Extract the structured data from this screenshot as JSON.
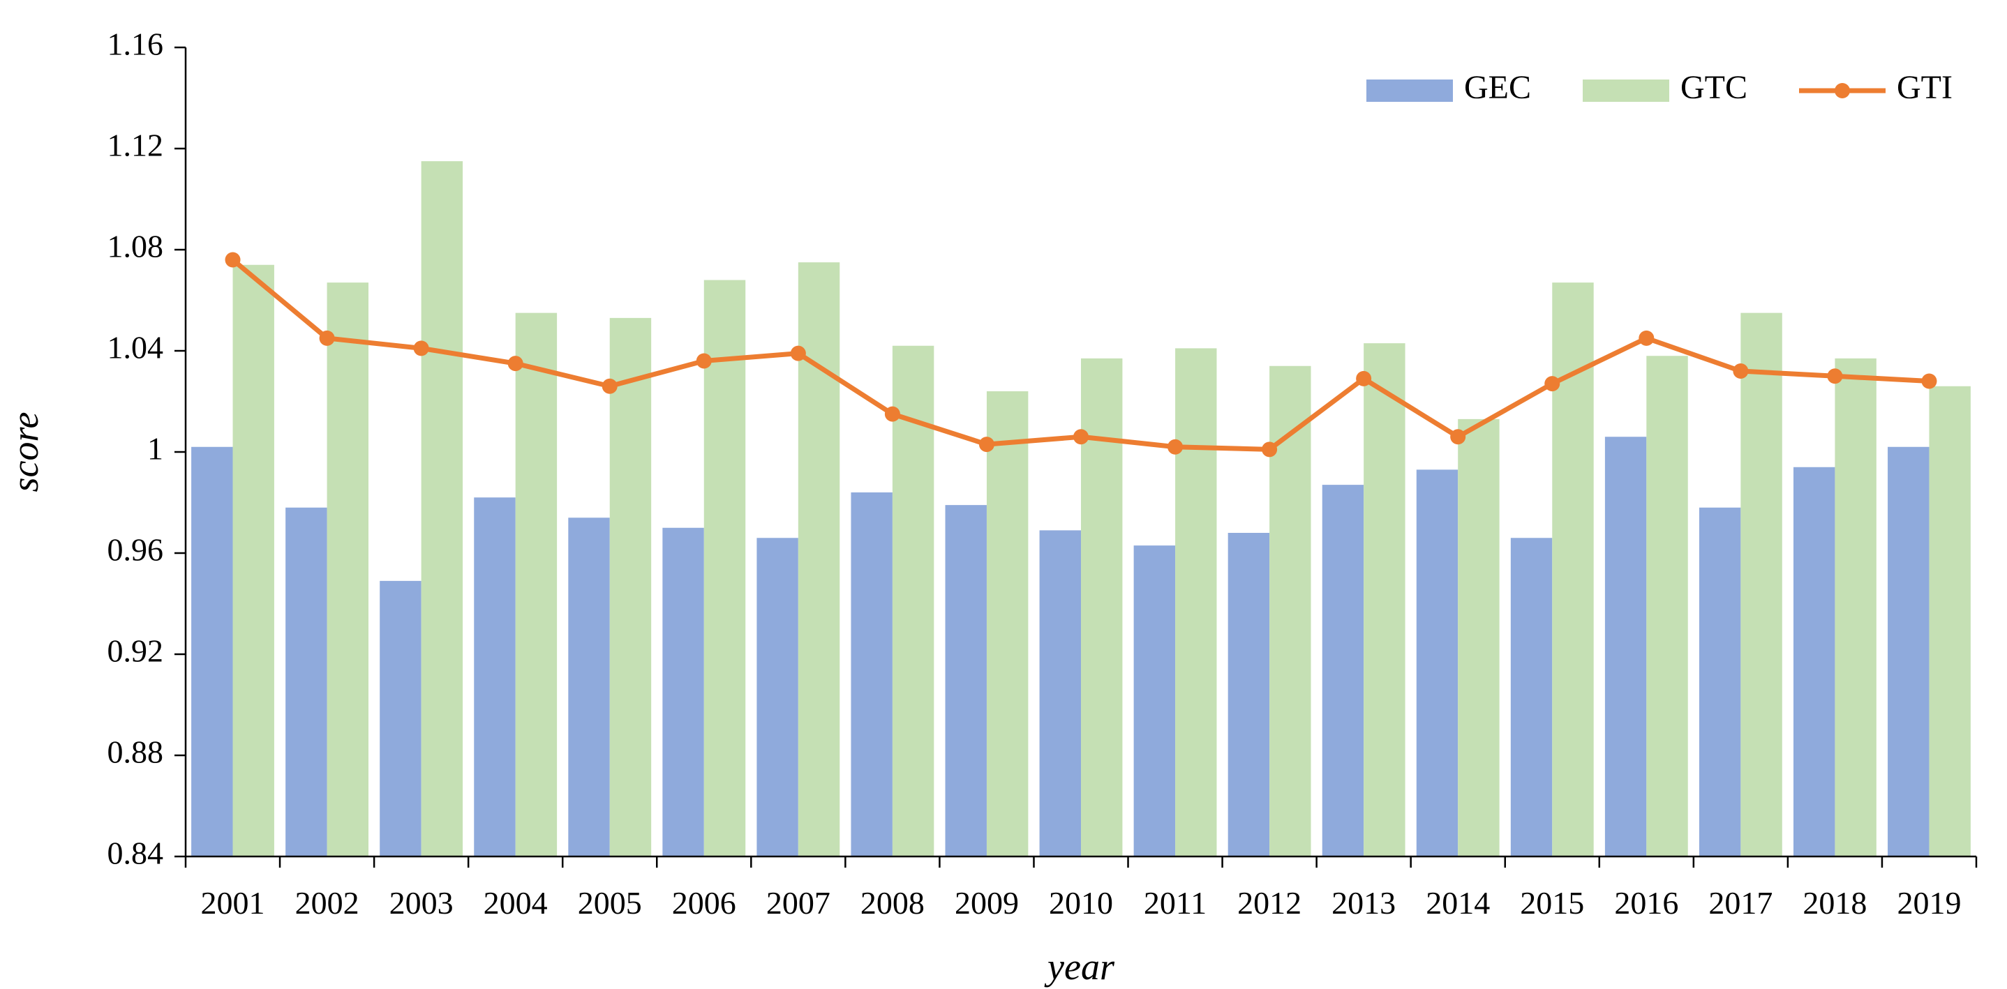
{
  "chart_data": {
    "type": "bar",
    "xlabel": "year",
    "ylabel": "score",
    "ylim": [
      0.84,
      1.16
    ],
    "y_ticks": [
      0.84,
      0.88,
      0.92,
      0.96,
      1,
      1.04,
      1.08,
      1.12,
      1.16
    ],
    "y_tick_labels": [
      "0.84",
      "0.88",
      "0.92",
      "0.96",
      "1",
      "1.04",
      "1.08",
      "1.12",
      "1.16"
    ],
    "grid": false,
    "legend_position": "top-right",
    "categories": [
      "2001",
      "2002",
      "2003",
      "2004",
      "2005",
      "2006",
      "2007",
      "2008",
      "2009",
      "2010",
      "2011",
      "2012",
      "2013",
      "2014",
      "2015",
      "2016",
      "2017",
      "2018",
      "2019"
    ],
    "series": [
      {
        "name": "GEC",
        "type": "bar",
        "color": "#8faadc",
        "values": [
          1.002,
          0.978,
          0.949,
          0.982,
          0.974,
          0.97,
          0.966,
          0.984,
          0.979,
          0.969,
          0.963,
          0.968,
          0.987,
          0.993,
          0.966,
          1.006,
          0.978,
          0.994,
          1.002
        ]
      },
      {
        "name": "GTC",
        "type": "bar",
        "color": "#c5e0b4",
        "values": [
          1.074,
          1.067,
          1.115,
          1.055,
          1.053,
          1.068,
          1.075,
          1.042,
          1.024,
          1.037,
          1.041,
          1.034,
          1.043,
          1.013,
          1.067,
          1.038,
          1.055,
          1.037,
          1.026
        ]
      },
      {
        "name": "GTI",
        "type": "line",
        "color": "#ed7d31",
        "values": [
          1.076,
          1.045,
          1.041,
          1.035,
          1.026,
          1.036,
          1.039,
          1.015,
          1.003,
          1.006,
          1.002,
          1.001,
          1.029,
          1.006,
          1.027,
          1.045,
          1.032,
          1.03,
          1.028
        ]
      }
    ]
  }
}
